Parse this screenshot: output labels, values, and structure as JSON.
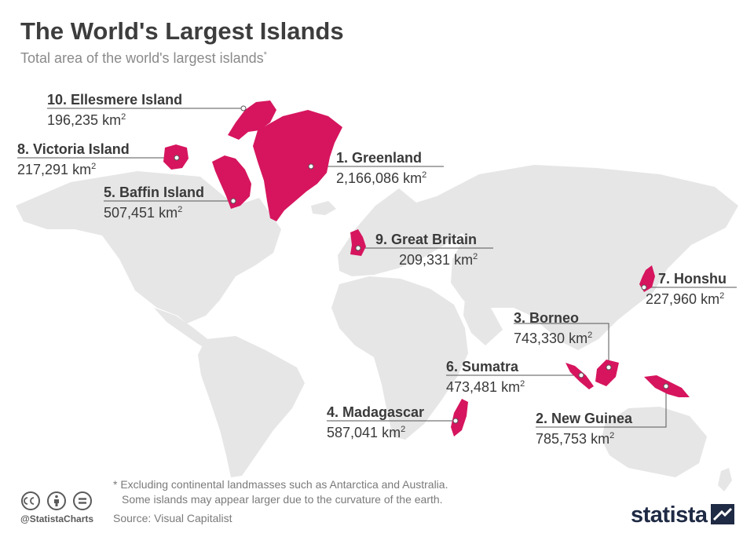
{
  "title": "The World's Largest Islands",
  "subtitle": "Total area of the world's largest islands",
  "subtitle_marker": "*",
  "unit": "km",
  "unit_exp": "2",
  "colors": {
    "island": "#d6155e",
    "land": "#e6e6e6",
    "text": "#3a3a3a",
    "muted": "#8a8a8a",
    "leader": "#555555"
  },
  "islands": [
    {
      "name": "1. Greenland",
      "area": "2,166,086"
    },
    {
      "name": "2. New Guinea",
      "area": "785,753"
    },
    {
      "name": "3. Borneo",
      "area": "743,330"
    },
    {
      "name": "4. Madagascar",
      "area": "587,041"
    },
    {
      "name": "5. Baffin Island",
      "area": "507,451"
    },
    {
      "name": "6. Sumatra",
      "area": "473,481"
    },
    {
      "name": "7. Honshu",
      "area": "227,960"
    },
    {
      "name": "8. Victoria Island",
      "area": "217,291"
    },
    {
      "name": "9. Great Britain",
      "area": "209,331"
    },
    {
      "name": "10. Ellesmere Island",
      "area": "196,235"
    }
  ],
  "footnote": {
    "line1": "* Excluding continental landmasses such as Antarctica and Australia.",
    "line2": "Some islands may appear larger due to the curvature of the earth."
  },
  "source": "Source: Visual Capitalist",
  "handle": "@StatistaCharts",
  "logo": "statista"
}
